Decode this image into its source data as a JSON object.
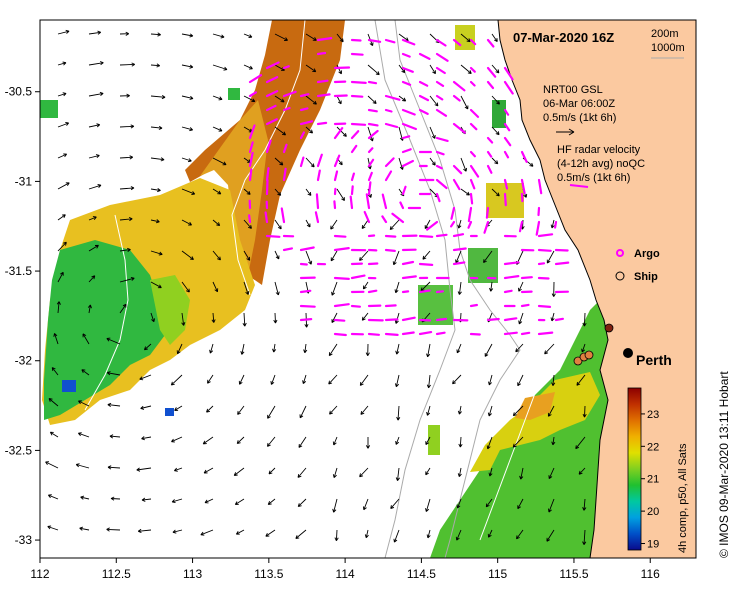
{
  "map": {
    "date_title": "07-Mar-2020 16Z",
    "depth_contours": [
      "200m",
      "1000m"
    ],
    "city": "Perth",
    "credit": "© IMOS 09-Mar-2020 13:11 Hobart",
    "lon_ticks": [
      "112",
      "112.5",
      "113",
      "113.5",
      "114",
      "114.5",
      "115",
      "115.5",
      "116"
    ],
    "lat_ticks": [
      "-30.5",
      "-31",
      "-31.5",
      "-32",
      "-32.5",
      "-33"
    ],
    "lon_range": [
      112,
      116.3
    ],
    "lat_range": [
      -33.1,
      -30.1
    ]
  },
  "legend": {
    "gsl_line1": "NRT00 GSL",
    "gsl_line2": "06-Mar 06:00Z",
    "gsl_line3": "0.5m/s (1kt 6h)",
    "hf_line1": "HF radar velocity",
    "hf_line2": "(4-12h avg) noQC",
    "hf_line3": "0.5m/s (1kt 6h)",
    "argo": "Argo",
    "ship": "Ship",
    "hf_color": "#ff00ff",
    "land_color": "#fbc9a0"
  },
  "colorbar": {
    "title": "4h comp, p50, All Sats",
    "ticks": [
      "23",
      "22",
      "21",
      "20",
      "19"
    ],
    "range": [
      18.8,
      23.8
    ],
    "colors": [
      "#0a0a8c",
      "#0050c8",
      "#00a0e0",
      "#00c8a0",
      "#20c030",
      "#80d020",
      "#e0e000",
      "#f0b000",
      "#e07000",
      "#c03000",
      "#8c0000"
    ]
  }
}
